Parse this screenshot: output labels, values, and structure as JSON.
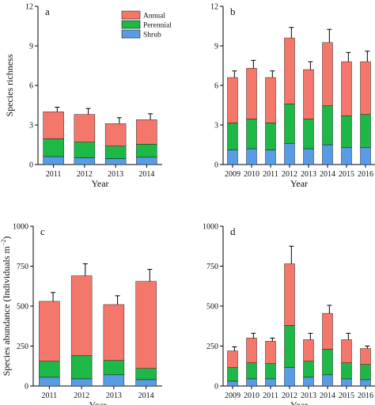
{
  "chart_data": [
    {
      "panel": "a",
      "type": "bar",
      "stacked": true,
      "categories": [
        "2011",
        "2012",
        "2013",
        "2014"
      ],
      "series": [
        {
          "name": "Shrub",
          "values": [
            0.6,
            0.5,
            0.45,
            0.55
          ],
          "err": [
            0.1,
            0.1,
            0.1,
            0.1
          ]
        },
        {
          "name": "Perennial",
          "values": [
            1.35,
            1.2,
            0.95,
            1.0
          ],
          "err": [
            0.15,
            0.15,
            0.15,
            0.2
          ]
        },
        {
          "name": "Annual",
          "values": [
            2.05,
            2.1,
            1.7,
            1.85
          ],
          "err": [
            0.35,
            0.45,
            0.45,
            0.45
          ]
        }
      ],
      "xlabel": "Year",
      "ylabel": "Species richness",
      "ylim": [
        0,
        12
      ],
      "yticks": [
        "0",
        "3",
        "6",
        "9",
        "12"
      ],
      "legend": [
        "Annual",
        "Perennial",
        "Shrub"
      ],
      "legend_position": "top-right"
    },
    {
      "panel": "b",
      "type": "bar",
      "stacked": true,
      "categories": [
        "2009",
        "2010",
        "2011",
        "2012",
        "2013",
        "2014",
        "2015",
        "2016"
      ],
      "series": [
        {
          "name": "Shrub",
          "values": [
            1.1,
            1.2,
            1.1,
            1.6,
            1.2,
            1.5,
            1.3,
            1.3
          ],
          "err": [
            0.2,
            0.2,
            0.2,
            0.3,
            0.2,
            0.3,
            0.2,
            0.2
          ]
        },
        {
          "name": "Perennial",
          "values": [
            2.05,
            2.25,
            2.05,
            3.0,
            2.25,
            2.95,
            2.4,
            2.5
          ],
          "err": [
            0.3,
            0.4,
            0.4,
            0.55,
            0.4,
            0.6,
            0.4,
            0.4
          ]
        },
        {
          "name": "Annual",
          "values": [
            3.45,
            3.85,
            3.45,
            5.0,
            3.75,
            4.8,
            4.1,
            4.0
          ],
          "err": [
            0.5,
            0.6,
            0.5,
            0.8,
            0.6,
            1.0,
            0.7,
            0.8
          ]
        }
      ],
      "xlabel": "Year",
      "ylabel": "",
      "ylim": [
        0,
        12
      ],
      "yticks": [
        "0",
        "3",
        "6",
        "9",
        "12"
      ]
    },
    {
      "panel": "c",
      "type": "bar",
      "stacked": true,
      "categories": [
        "2011",
        "2012",
        "2013",
        "2014"
      ],
      "series": [
        {
          "name": "Shrub",
          "values": [
            55,
            45,
            70,
            40
          ],
          "err": [
            15,
            15,
            20,
            15
          ]
        },
        {
          "name": "Perennial",
          "values": [
            100,
            145,
            90,
            70
          ],
          "err": [
            40,
            55,
            40,
            30
          ]
        },
        {
          "name": "Annual",
          "values": [
            375,
            500,
            350,
            545
          ],
          "err": [
            55,
            75,
            55,
            75
          ]
        }
      ],
      "xlabel": "Year",
      "ylabel": "Species abundance (Individuals  m",
      "ylabel_superscript": "−2",
      "ylabel_close": ")",
      "ylim": [
        0,
        1000
      ],
      "yticks": [
        "0",
        "250",
        "500",
        "750",
        "1000"
      ]
    },
    {
      "panel": "d",
      "type": "bar",
      "stacked": true,
      "categories": [
        "2009",
        "2010",
        "2011",
        "2012",
        "2013",
        "2014",
        "2015",
        "2016"
      ],
      "series": [
        {
          "name": "Shrub",
          "values": [
            30,
            45,
            45,
            115,
            55,
            70,
            45,
            40
          ],
          "err": [
            8,
            10,
            10,
            20,
            10,
            15,
            10,
            10
          ]
        },
        {
          "name": "Perennial",
          "values": [
            85,
            100,
            95,
            265,
            100,
            160,
            100,
            95
          ],
          "err": [
            15,
            20,
            25,
            50,
            25,
            40,
            20,
            15
          ]
        },
        {
          "name": "Annual",
          "values": [
            105,
            155,
            140,
            385,
            135,
            225,
            145,
            100
          ],
          "err": [
            25,
            30,
            20,
            110,
            40,
            50,
            40,
            15
          ]
        }
      ],
      "xlabel": "Year",
      "ylabel": "",
      "ylim": [
        0,
        1000
      ],
      "yticks": [
        "0",
        "250",
        "500",
        "750",
        "1000"
      ]
    }
  ],
  "colors": {
    "Annual": "#f4776b",
    "Perennial": "#1db846",
    "Shrub": "#5a9be6"
  }
}
